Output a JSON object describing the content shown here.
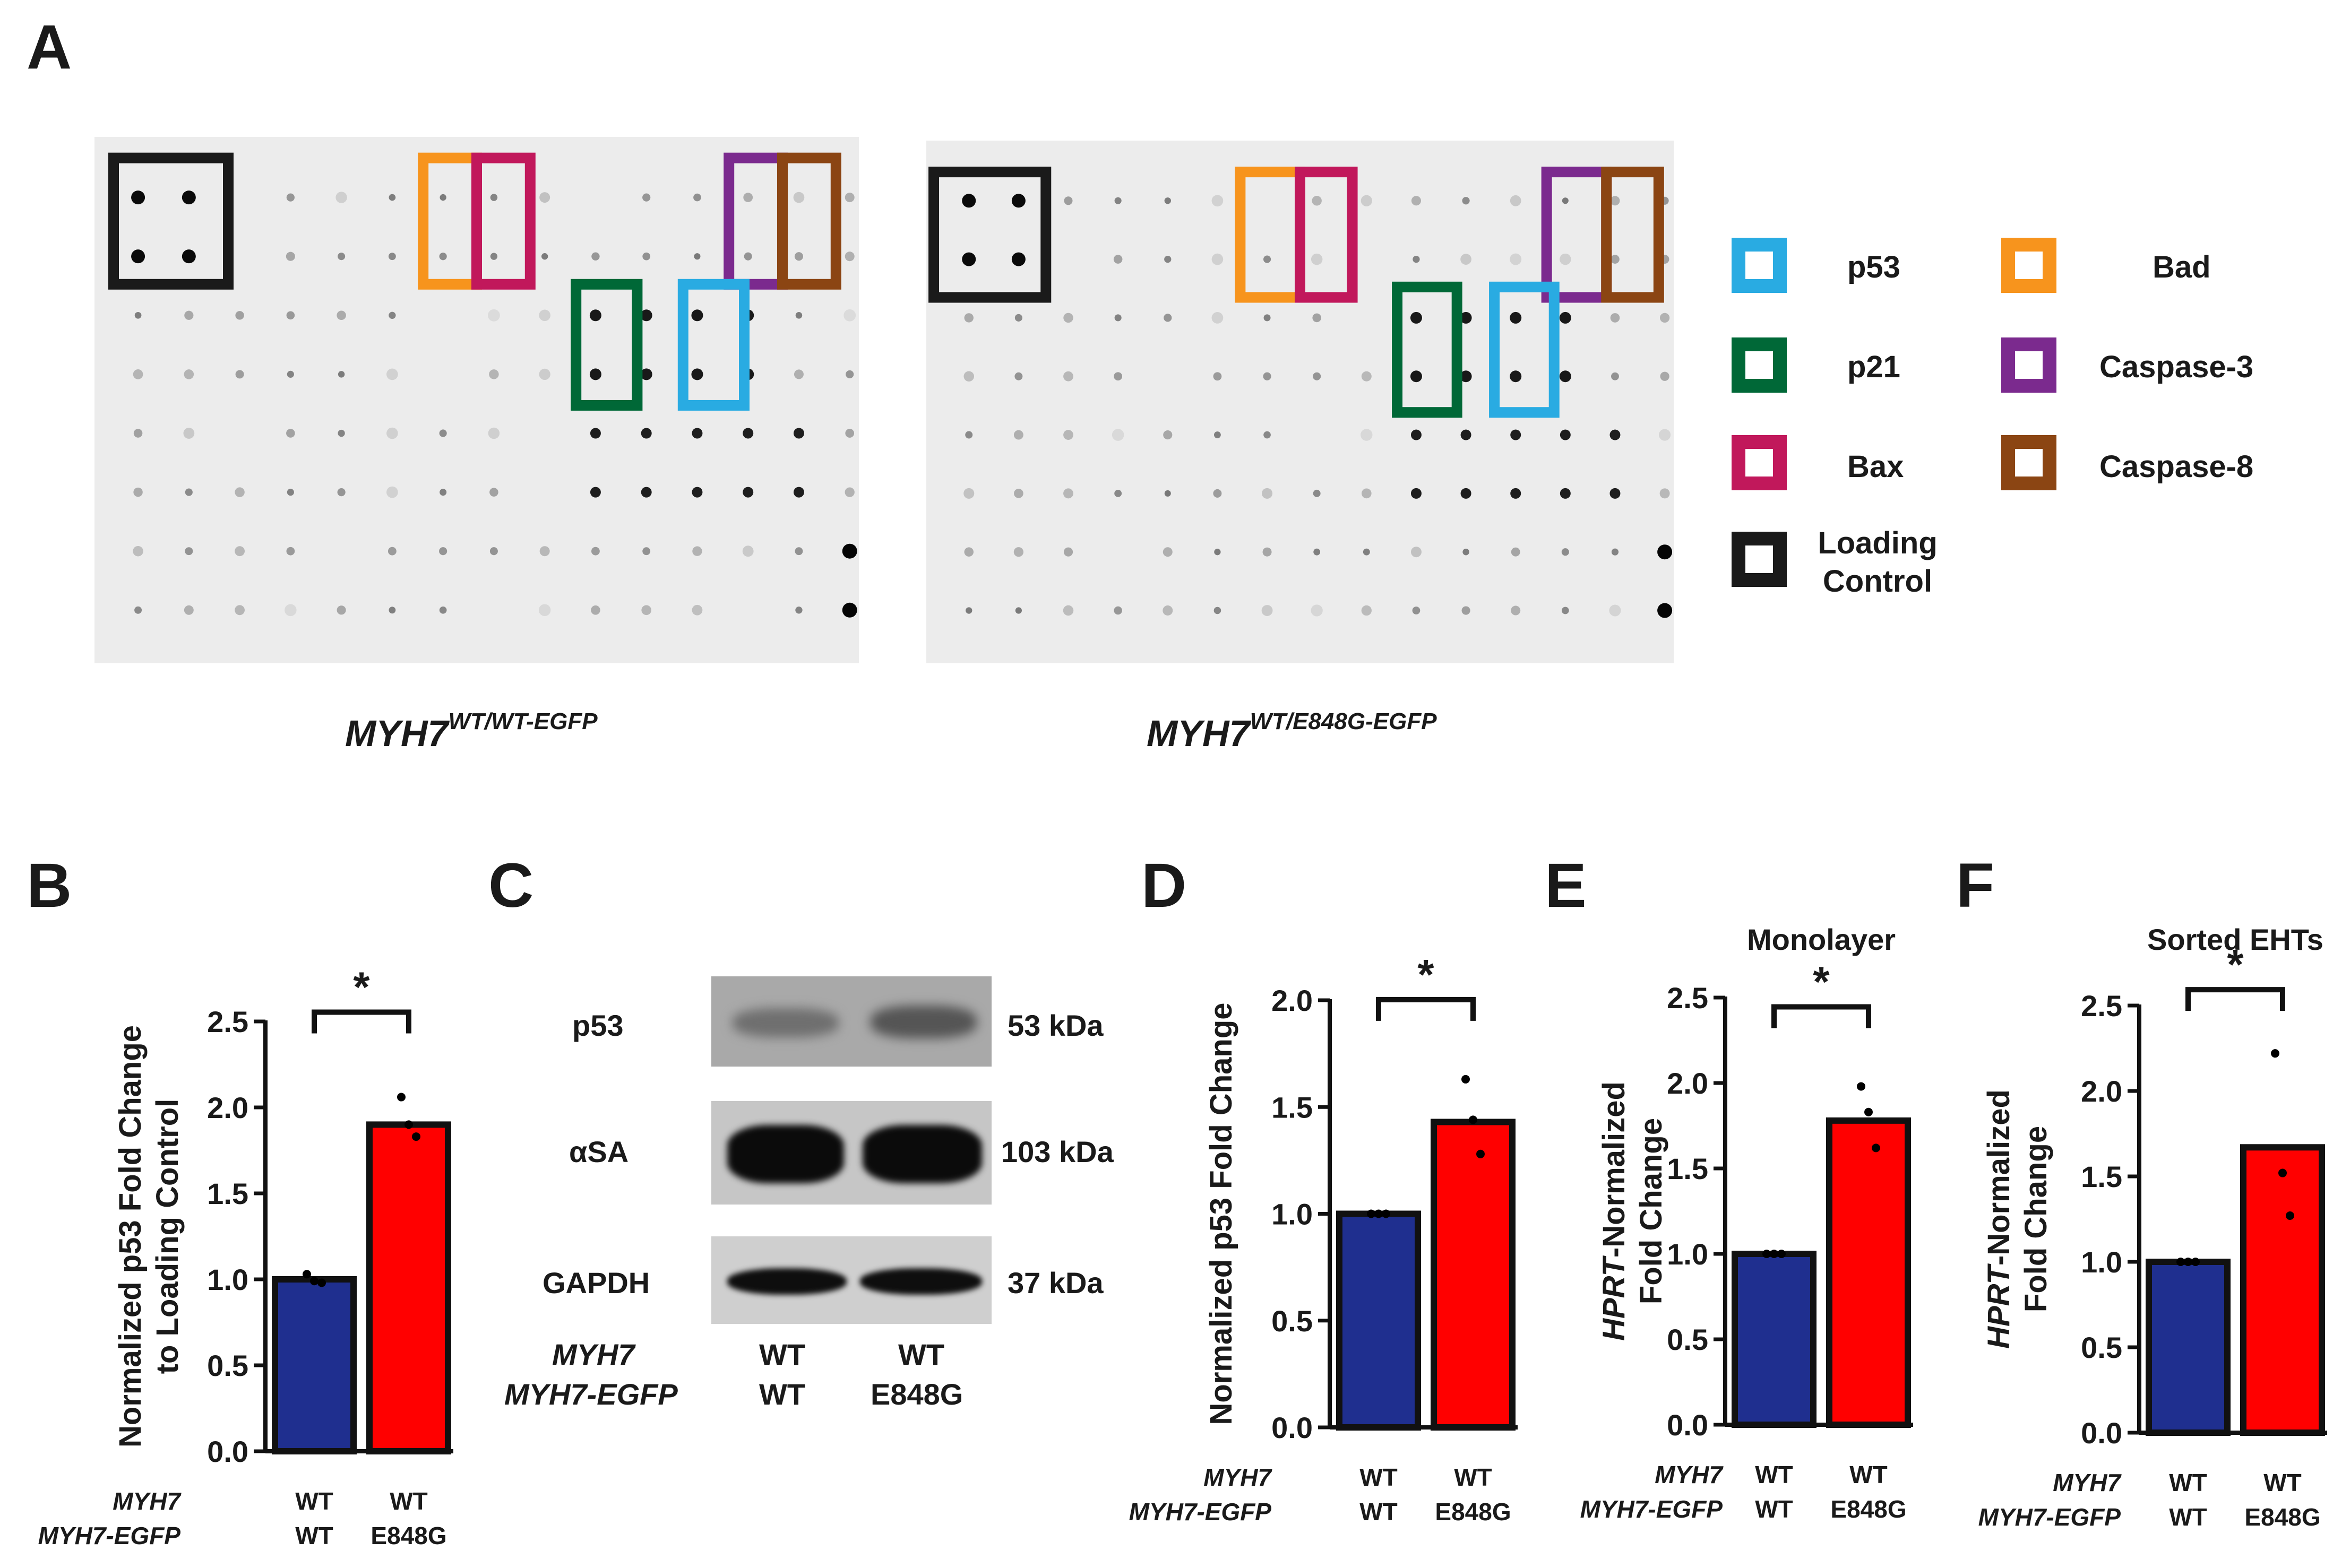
{
  "panels": {
    "A": "A",
    "B": "B",
    "C": "C",
    "D": "D",
    "E": "E",
    "F": "F"
  },
  "array": {
    "left_genotype_base": "MYH7",
    "left_genotype_sup": "WT/WT-EGFP",
    "right_genotype_base": "MYH7",
    "right_genotype_sup": "WT/E848G-EGFP"
  },
  "legend": [
    {
      "label": "p53",
      "color": "#29abe2"
    },
    {
      "label": "p21",
      "color": "#006837"
    },
    {
      "label": "Bax",
      "color": "#c1185b"
    },
    {
      "label": "Loading Control",
      "color": "#1a1a1a"
    },
    {
      "label": "Bad",
      "color": "#f7941d"
    },
    {
      "label": "Caspase-3",
      "color": "#7b2a8e"
    },
    {
      "label": "Caspase-8",
      "color": "#8b4513"
    }
  ],
  "genotype_rows": {
    "row1_label": "MYH7",
    "row2_label": "MYH7-EGFP",
    "group1_row1": "WT",
    "group1_row2": "WT",
    "group2_row1": "WT",
    "group2_row2": "E848G"
  },
  "western": {
    "bands": [
      {
        "protein": "p53",
        "size": "53 kDa"
      },
      {
        "protein": "αSA",
        "size": "103 kDa"
      },
      {
        "protein": "GAPDH",
        "size": "37 kDa"
      }
    ],
    "row1_label": "MYH7",
    "row2_label": "MYH7-EGFP",
    "lane1_row1": "WT",
    "lane1_row2": "WT",
    "lane2_row1": "WT",
    "lane2_row2": "E848G"
  },
  "colors": {
    "wt": "#1f2f8f",
    "mut": "#ff0000",
    "bar_border": "#111111"
  },
  "chart_data": [
    {
      "panel": "B",
      "type": "bar",
      "title": "",
      "ylabel_line1": "Normalized p53 Fold Change",
      "ylabel_line2": "to Loading Control",
      "ylim": [
        0,
        2.5
      ],
      "yticks": [
        "0.0",
        "0.5",
        "1.0",
        "1.5",
        "2.0",
        "2.5"
      ],
      "values": [
        1.0,
        1.9
      ],
      "points": [
        [
          1.03,
          0.99,
          0.98
        ],
        [
          2.06,
          1.9,
          1.83
        ]
      ],
      "significance": "*"
    },
    {
      "panel": "D",
      "type": "bar",
      "title": "",
      "ylabel_line1": "Normalized p53 Fold Change",
      "ylabel_line2": "",
      "ylim": [
        0,
        2.0
      ],
      "yticks": [
        "0.0",
        "0.5",
        "1.0",
        "1.5",
        "2.0"
      ],
      "values": [
        1.0,
        1.43
      ],
      "points": [
        [
          1.0,
          1.0,
          1.0
        ],
        [
          1.63,
          1.44,
          1.28
        ]
      ],
      "significance": "*"
    },
    {
      "panel": "E",
      "type": "bar",
      "title": "Monolayer",
      "ylabel_italic": "HPRT",
      "ylabel_line1": "-Normalized",
      "ylabel_line2": "Fold Change",
      "ylim": [
        0,
        2.5
      ],
      "yticks": [
        "0.0",
        "0.5",
        "1.0",
        "1.5",
        "2.0",
        "2.5"
      ],
      "values": [
        1.0,
        1.78
      ],
      "points": [
        [
          1.0,
          1.0,
          1.0
        ],
        [
          1.98,
          1.83,
          1.62
        ]
      ],
      "significance": "*"
    },
    {
      "panel": "F",
      "type": "bar",
      "title": "Sorted EHTs",
      "ylabel_italic": "HPRT",
      "ylabel_line1": "-Normalized",
      "ylabel_line2": "Fold Change",
      "ylim": [
        0,
        2.5
      ],
      "yticks": [
        "0.0",
        "0.5",
        "1.0",
        "1.5",
        "2.0",
        "2.5"
      ],
      "values": [
        1.0,
        1.67
      ],
      "points": [
        [
          1.0,
          1.0,
          1.0
        ],
        [
          2.22,
          1.52,
          1.27
        ]
      ],
      "significance": "*"
    }
  ]
}
